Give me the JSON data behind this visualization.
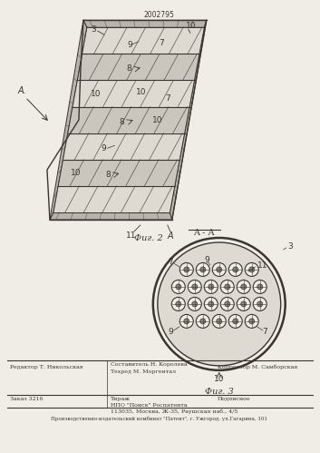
{
  "patent_number": "2002795",
  "bg_color": "#f0ede6",
  "line_color": "#3a3530",
  "fig2_label": "Фиг. 2",
  "fig3_label": "Фиг. 3",
  "section_label": "A - A",
  "footer_line1_left": "Редактор Т. Никольская",
  "footer_line1_mid": "Составитель Н. Королева",
  "footer_line1_mid2": "Техред М. Моргентал",
  "footer_line1_right": "Корректор М. Самборская",
  "footer_line2_left": "Заказ 3216",
  "footer_line2_mid": "Тираж",
  "footer_line2_right": "Подписное",
  "footer_line3_mid": "НПО \"Поиск\" Роспатента",
  "footer_line4_mid": "113035, Москва, Ж-35, Раушская наб., 4/5",
  "footer_bottom": "Производственно-издательский комбинат \"Патент\", г. Ужгород, ул.Гагарина, 101"
}
